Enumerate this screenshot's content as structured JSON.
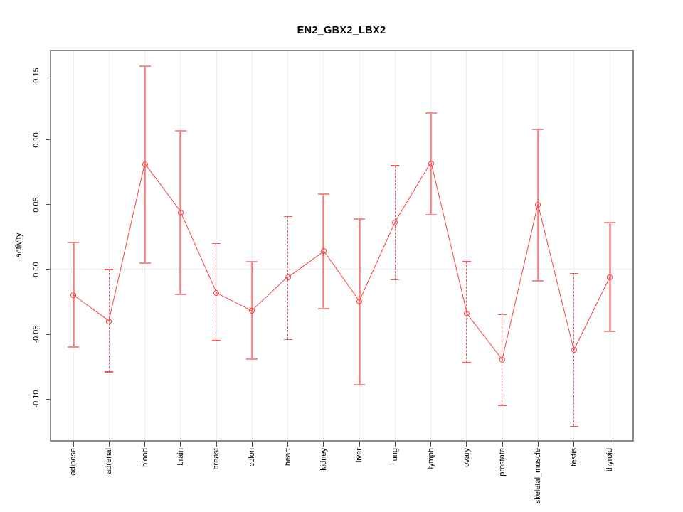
{
  "window": {
    "background": "#ffffff"
  },
  "chart_data": {
    "type": "line",
    "title": "EN2_GBX2_LBX2",
    "xlabel": "",
    "ylabel": "activity",
    "legend": "none",
    "grid": "vertical dotted gridlines per category plus dotted zero line",
    "categories": [
      "adipose",
      "adrenal",
      "blood",
      "brain",
      "breast",
      "colon",
      "heart",
      "kidney",
      "liver",
      "lung",
      "lymph",
      "ovary",
      "prostate",
      "skeletal_muscle",
      "testis",
      "thyroid"
    ],
    "series": [
      {
        "name": "activity",
        "values": [
          -0.02,
          -0.04,
          0.081,
          0.044,
          -0.018,
          -0.032,
          -0.006,
          0.014,
          -0.025,
          0.036,
          0.082,
          -0.034,
          -0.07,
          0.05,
          -0.062,
          -0.006
        ]
      }
    ],
    "error_upper": [
      0.021,
      0.0,
      0.157,
      0.107,
      0.02,
      0.006,
      0.041,
      0.058,
      0.039,
      0.08,
      0.121,
      0.006,
      -0.035,
      0.108,
      -0.003,
      0.036
    ],
    "error_lower": [
      -0.06,
      -0.079,
      0.005,
      -0.019,
      -0.055,
      -0.069,
      -0.054,
      -0.03,
      -0.089,
      -0.008,
      0.042,
      -0.072,
      -0.105,
      -0.009,
      -0.121,
      -0.048
    ],
    "bar_styles": [
      "solid",
      "dashed",
      "solid",
      "solid",
      "dashed",
      "solid",
      "dashed",
      "solid",
      "solid",
      "dashed",
      "solid",
      "dashed",
      "dashed",
      "solid",
      "dashed",
      "solid"
    ],
    "yticks": [
      0.15,
      0.1,
      0.05,
      0.0,
      -0.05,
      -0.1
    ],
    "ytick_labels": [
      "0.15",
      "0.10",
      "0.05",
      "0.00",
      "-0.05",
      "-0.10"
    ],
    "ylim": [
      -0.1315,
      0.1685
    ],
    "colors": {
      "line": "#fa4343",
      "marker": "#fa4343",
      "error_bar_solid": "#f59c9c",
      "error_bar_core": "#e96060",
      "error_bar_dashed": "#f25c5c",
      "gridline": "#dcdcdc",
      "box": "#898989",
      "tick": "#4d4d4d",
      "text": "#000000"
    }
  }
}
